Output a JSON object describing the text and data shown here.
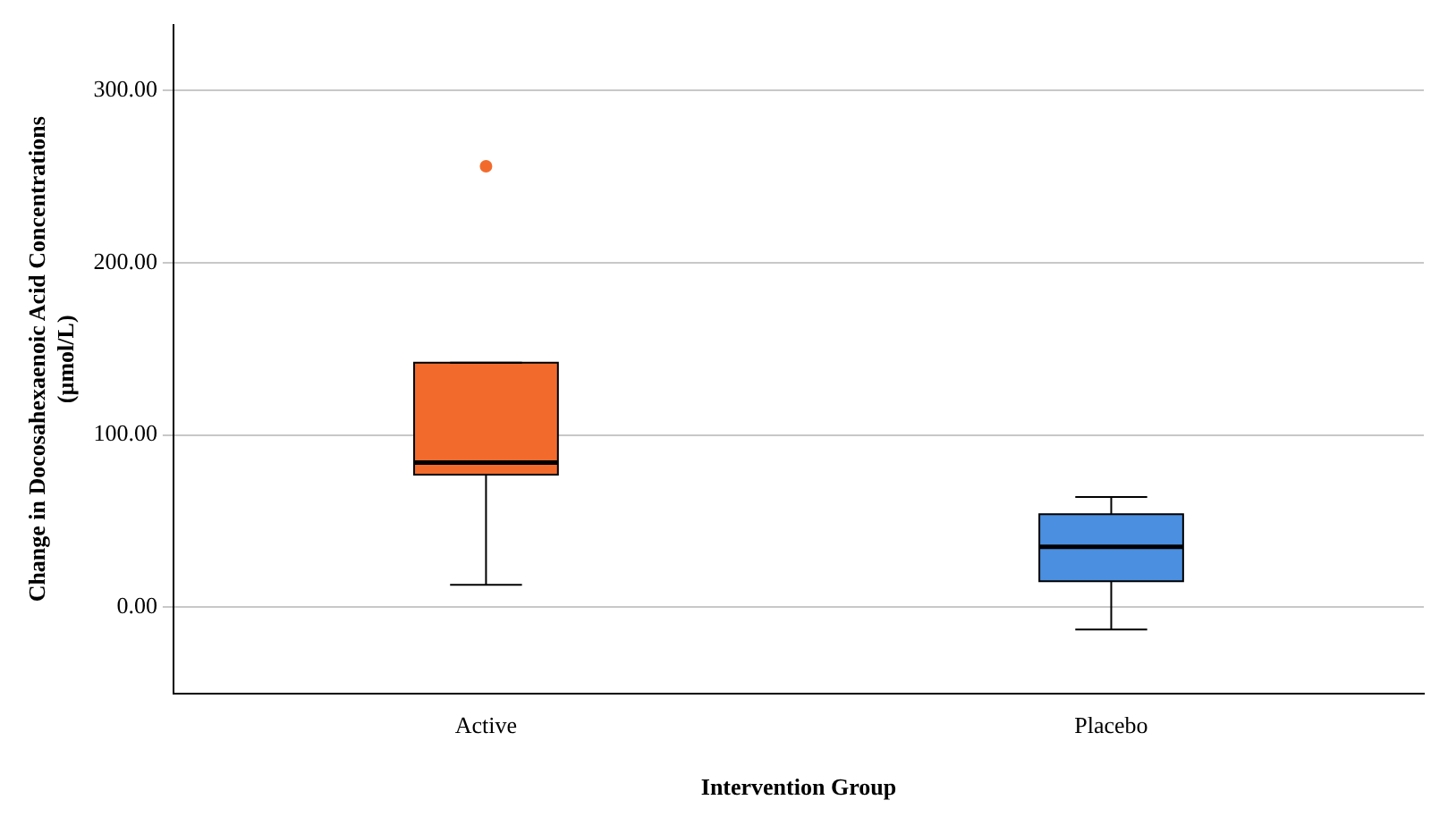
{
  "chart_data": {
    "type": "box",
    "xlabel": "Intervention Group",
    "ylabel": "Change in Docosahexaenoic Acid Concentrations (µmol/L)",
    "categories": [
      "Active",
      "Placebo"
    ],
    "boxes": [
      {
        "low": 13,
        "q1": 77,
        "median": 84,
        "q3": 142,
        "high": 142,
        "outliers": [
          256
        ]
      },
      {
        "low": -13,
        "q1": 15,
        "median": 35,
        "q3": 54,
        "high": 64
      }
    ],
    "colors": [
      "#f26b2c",
      "#4a8fe0"
    ],
    "ylim": [
      -50,
      338
    ],
    "yticks": [
      {
        "value": 0,
        "label": "0.00"
      },
      {
        "value": 100,
        "label": "100.00"
      },
      {
        "value": 200,
        "label": "200.00"
      },
      {
        "value": 300,
        "label": "300.00"
      }
    ],
    "grid": "y"
  }
}
